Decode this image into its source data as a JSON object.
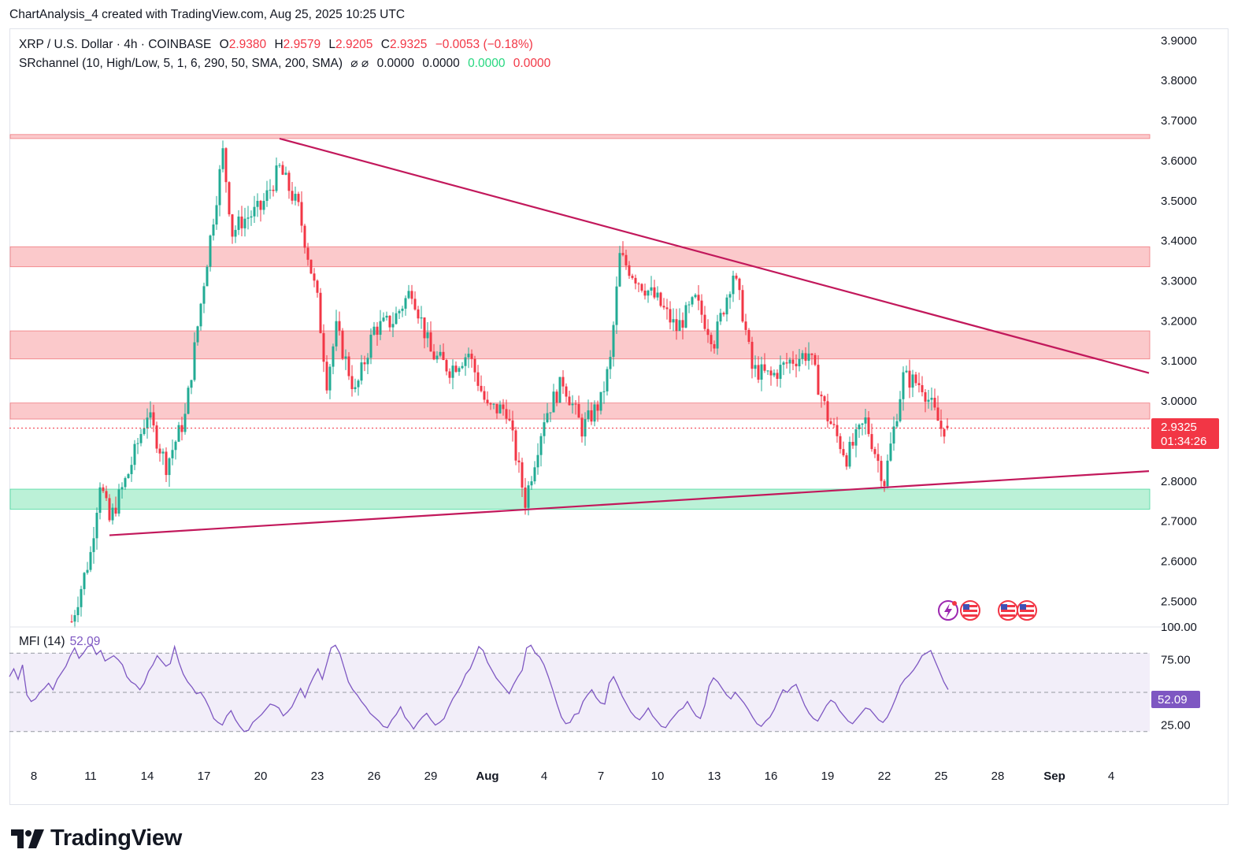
{
  "attribution": "ChartAnalysis_4 created with TradingView.com, Aug 25, 2025 10:25 UTC",
  "legend": {
    "symbol": "XRP / U.S. Dollar · 4h · COINBASE",
    "o_label": "O",
    "o_value": "2.9380",
    "h_label": "H",
    "h_value": "2.9579",
    "l_label": "L",
    "l_value": "2.9205",
    "c_label": "C",
    "c_value": "2.9325",
    "change": "−0.0053 (−0.18%)",
    "indicator": "SRchannel (10, High/Low, 5, 1, 6, 290, 50, SMA, 200, SMA)",
    "ind_icons": "⌀ ⌀",
    "ind_v1": "0.0000",
    "ind_v2": "0.0000",
    "ind_v3": "0.0000",
    "ind_v4": "0.0000"
  },
  "mfi_legend": {
    "label": "MFI (14)",
    "value": "52.09"
  },
  "price_tag": {
    "price": "2.9325",
    "countdown": "01:34:26"
  },
  "mfi_tag": "52.09",
  "logo_text": "TradingView",
  "colors": {
    "up": "#22ab94",
    "down": "#f23645",
    "trendline": "#c2185b",
    "resistance_zone": "#f8a5a8",
    "support_zone": "#8de8bd",
    "mfi": "#7e57c2"
  },
  "chart_data": [
    {
      "type": "candlestick",
      "title": "XRP / U.S. Dollar · 4h · COINBASE",
      "y_axis": {
        "ticks": [
          "3.9000",
          "3.8000",
          "3.7000",
          "3.6000",
          "3.5000",
          "3.4000",
          "3.3000",
          "3.2000",
          "3.1000",
          "3.0000",
          "2.8000",
          "2.7000",
          "2.6000",
          "2.5000"
        ],
        "range": [
          2.44,
          3.93
        ]
      },
      "x_axis": {
        "ticks": [
          "8",
          "11",
          "14",
          "17",
          "20",
          "23",
          "26",
          "29",
          "Aug",
          "4",
          "7",
          "10",
          "13",
          "16",
          "19",
          "22",
          "25",
          "28",
          "Sep",
          "4"
        ]
      },
      "path_keypoints": [
        {
          "date": "Jul 10",
          "price": 2.45
        },
        {
          "date": "Jul 11",
          "price": 2.62
        },
        {
          "date": "Jul 11 12h",
          "price": 2.8
        },
        {
          "date": "Jul 12",
          "price": 2.7
        },
        {
          "date": "Jul 13",
          "price": 2.82
        },
        {
          "date": "Jul 14",
          "price": 2.97
        },
        {
          "date": "Jul 15",
          "price": 2.84
        },
        {
          "date": "Jul 16",
          "price": 2.96
        },
        {
          "date": "Jul 17",
          "price": 3.3
        },
        {
          "date": "Jul 18",
          "price": 3.62
        },
        {
          "date": "Jul 18 12h",
          "price": 3.42
        },
        {
          "date": "Jul 19",
          "price": 3.45
        },
        {
          "date": "Jul 20",
          "price": 3.48
        },
        {
          "date": "Jul 21",
          "price": 3.58
        },
        {
          "date": "Jul 22",
          "price": 3.48
        },
        {
          "date": "Jul 23",
          "price": 3.25
        },
        {
          "date": "Jul 23 12h",
          "price": 3.05
        },
        {
          "date": "Jul 24",
          "price": 3.18
        },
        {
          "date": "Jul 25",
          "price": 3.02
        },
        {
          "date": "Jul 26",
          "price": 3.18
        },
        {
          "date": "Jul 27",
          "price": 3.2
        },
        {
          "date": "Jul 28",
          "price": 3.28
        },
        {
          "date": "Jul 29",
          "price": 3.12
        },
        {
          "date": "Jul 30",
          "price": 3.08
        },
        {
          "date": "Jul 31",
          "price": 3.12
        },
        {
          "date": "Aug 1",
          "price": 2.98
        },
        {
          "date": "Aug 2",
          "price": 2.98
        },
        {
          "date": "Aug 3",
          "price": 2.75
        },
        {
          "date": "Aug 4",
          "price": 2.96
        },
        {
          "date": "Aug 5",
          "price": 3.05
        },
        {
          "date": "Aug 6",
          "price": 2.93
        },
        {
          "date": "Aug 7",
          "price": 3.0
        },
        {
          "date": "Aug 7 12h",
          "price": 3.1
        },
        {
          "date": "Aug 8",
          "price": 3.36
        },
        {
          "date": "Aug 9",
          "price": 3.3
        },
        {
          "date": "Aug 10",
          "price": 3.25
        },
        {
          "date": "Aug 11",
          "price": 3.18
        },
        {
          "date": "Aug 12",
          "price": 3.25
        },
        {
          "date": "Aug 13",
          "price": 3.15
        },
        {
          "date": "Aug 14",
          "price": 3.32
        },
        {
          "date": "Aug 14 12h",
          "price": 3.22
        },
        {
          "date": "Aug 15",
          "price": 3.08
        },
        {
          "date": "Aug 16",
          "price": 3.06
        },
        {
          "date": "Aug 17",
          "price": 3.1
        },
        {
          "date": "Aug 18",
          "price": 3.12
        },
        {
          "date": "Aug 19",
          "price": 2.96
        },
        {
          "date": "Aug 20",
          "price": 2.86
        },
        {
          "date": "Aug 21",
          "price": 2.95
        },
        {
          "date": "Aug 22",
          "price": 2.8
        },
        {
          "date": "Aug 23",
          "price": 3.06
        },
        {
          "date": "Aug 24",
          "price": 3.04
        },
        {
          "date": "Aug 25",
          "price": 2.9325
        }
      ],
      "zones": [
        {
          "kind": "resistance",
          "from": 3.655,
          "to": 3.665
        },
        {
          "kind": "resistance",
          "from": 3.335,
          "to": 3.385
        },
        {
          "kind": "resistance",
          "from": 3.105,
          "to": 3.175
        },
        {
          "kind": "resistance",
          "from": 2.955,
          "to": 2.995
        },
        {
          "kind": "support",
          "from": 2.73,
          "to": 2.78
        }
      ],
      "trendlines": [
        {
          "from": {
            "date": "Jul 21",
            "price": 3.655
          },
          "to": {
            "date": "Sep 5",
            "price": 3.07
          }
        },
        {
          "from": {
            "date": "Jul 12",
            "price": 2.665
          },
          "to": {
            "date": "Sep 5",
            "price": 2.825
          }
        }
      ],
      "last_price": 2.9325
    },
    {
      "type": "line",
      "title": "MFI (14)",
      "y_axis": {
        "ticks": [
          "100.00",
          "75.00",
          "25.00"
        ],
        "range": [
          0,
          100
        ]
      },
      "bands": {
        "upper": 80,
        "middle": 50,
        "lower": 20
      },
      "series": [
        {
          "name": "MFI (14)",
          "values": [
            62,
            68,
            60,
            71,
            48,
            43,
            45,
            50,
            53,
            57,
            52,
            60,
            65,
            70,
            78,
            84,
            76,
            80,
            85,
            86,
            79,
            82,
            74,
            76,
            78,
            75,
            71,
            62,
            58,
            56,
            52,
            57,
            66,
            71,
            78,
            74,
            70,
            72,
            85,
            73,
            64,
            58,
            54,
            49,
            50,
            45,
            38,
            30,
            27,
            25,
            32,
            36,
            29,
            24,
            20,
            21,
            27,
            30,
            33,
            37,
            41,
            40,
            38,
            32,
            35,
            39,
            46,
            53,
            46,
            55,
            62,
            68,
            60,
            72,
            84,
            86,
            80,
            69,
            58,
            52,
            48,
            43,
            39,
            34,
            31,
            28,
            24,
            23,
            29,
            33,
            39,
            31,
            27,
            22,
            27,
            31,
            34,
            29,
            25,
            27,
            30,
            38,
            45,
            50,
            56,
            64,
            68,
            76,
            85,
            82,
            73,
            67,
            61,
            57,
            53,
            49,
            56,
            62,
            67,
            84,
            86,
            80,
            77,
            71,
            62,
            52,
            41,
            31,
            26,
            27,
            33,
            34,
            43,
            48,
            52,
            46,
            42,
            41,
            57,
            62,
            55,
            47,
            41,
            35,
            31,
            29,
            33,
            38,
            32,
            28,
            24,
            23,
            28,
            32,
            36,
            38,
            43,
            37,
            32,
            30,
            40,
            55,
            61,
            58,
            53,
            48,
            45,
            50,
            46,
            42,
            37,
            31,
            26,
            24,
            28,
            31,
            37,
            45,
            52,
            50,
            54,
            56,
            48,
            40,
            34,
            30,
            28,
            34,
            40,
            44,
            42,
            36,
            32,
            28,
            26,
            30,
            34,
            38,
            37,
            33,
            29,
            27,
            31,
            38,
            46,
            55,
            60,
            63,
            67,
            72,
            78,
            80,
            82,
            74,
            66,
            58,
            52.09
          ]
        }
      ]
    }
  ]
}
